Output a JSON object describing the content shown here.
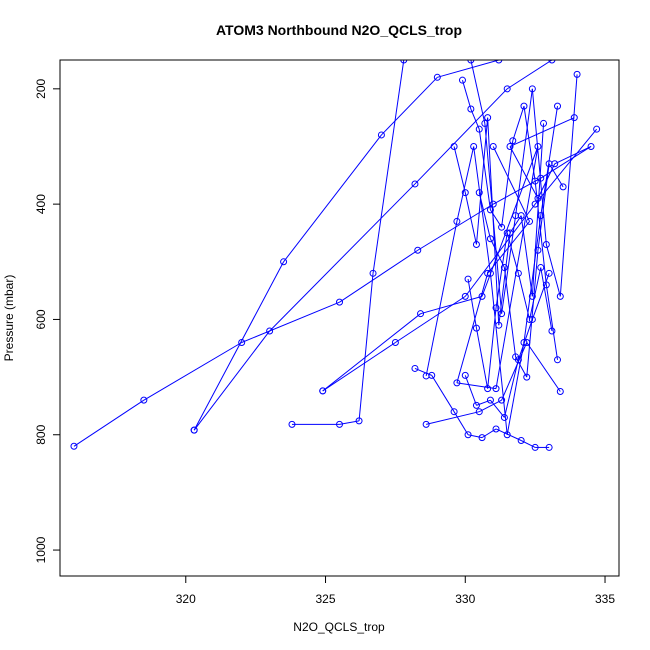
{
  "chart_data": {
    "type": "line",
    "title": "ATOM3 Northbound N2O_QCLS_trop",
    "xlabel": "N2O_QCLS_trop",
    "ylabel": "Pressure (mbar)",
    "xlim": [
      315.5,
      335.5
    ],
    "ylim": [
      1045,
      150
    ],
    "y_reversed": true,
    "x_ticks": [
      320,
      325,
      330,
      335
    ],
    "y_ticks": [
      200,
      400,
      600,
      800,
      1000
    ],
    "grid": false,
    "legend": "none",
    "colors": {
      "series": "#0000ff",
      "axis": "#000000"
    },
    "series": [
      {
        "x": [
          316.0,
          318.5,
          322.0,
          325.5,
          328.3,
          331.0,
          332.7,
          334.5,
          333.2,
          332.6,
          331.6,
          333.9
        ],
        "y": [
          820,
          740,
          640,
          570,
          480,
          400,
          355,
          300,
          330,
          390,
          300,
          250
        ]
      },
      {
        "x": [
          320.3,
          323.0,
          328.2,
          331.5,
          333.1
        ],
        "y": [
          792,
          620,
          365,
          200,
          150
        ]
      },
      {
        "x": [
          320.3,
          323.5,
          327.0,
          329.0,
          331.2
        ],
        "y": [
          792,
          500,
          280,
          180,
          150
        ]
      },
      {
        "x": [
          323.8,
          325.5,
          326.2,
          326.7,
          327.8
        ],
        "y": [
          782,
          782,
          776,
          520,
          150
        ]
      },
      {
        "x": [
          324.9,
          327.5,
          330.0,
          332.5,
          334.7
        ],
        "y": [
          724,
          640,
          560,
          400,
          270
        ]
      },
      {
        "x": [
          324.9,
          328.4,
          330.6,
          332.6,
          331.1,
          329.7,
          330.8,
          332.3,
          331.0
        ],
        "y": [
          724,
          590,
          560,
          300,
          720,
          710,
          520,
          430,
          300
        ]
      },
      {
        "x": [
          328.2,
          328.8,
          329.6,
          330.1,
          330.6,
          331.1,
          332.0,
          332.5,
          333.0
        ],
        "y": [
          685,
          697,
          760,
          800,
          805,
          790,
          810,
          822,
          822
        ]
      },
      {
        "x": [
          328.6,
          330.5,
          331.3,
          332.2,
          333.4
        ],
        "y": [
          782,
          760,
          740,
          640,
          725
        ]
      },
      {
        "x": [
          330.0,
          330.4,
          330.9,
          331.4,
          331.9,
          332.4,
          333.0
        ],
        "y": [
          697,
          749,
          740,
          770,
          670,
          600,
          520
        ]
      },
      {
        "x": [
          328.6,
          329.7,
          330.3,
          330.9,
          331.5,
          332.1,
          332.7,
          333.3
        ],
        "y": [
          698,
          430,
          300,
          520,
          800,
          640,
          420,
          230
        ]
      },
      {
        "x": [
          330.2,
          330.7,
          331.3,
          331.8,
          332.4,
          332.9,
          333.4,
          334.0
        ],
        "y": [
          150,
          260,
          590,
          420,
          200,
          470,
          560,
          175
        ]
      },
      {
        "x": [
          329.6,
          330.0,
          330.4,
          330.8,
          331.2,
          331.6,
          332.0,
          332.4,
          332.8
        ],
        "y": [
          300,
          380,
          470,
          250,
          610,
          450,
          420,
          560,
          260
        ]
      },
      {
        "x": [
          329.9,
          330.2,
          330.5,
          330.9,
          331.3,
          331.7,
          332.1,
          332.5,
          332.9,
          333.3
        ],
        "y": [
          185,
          235,
          270,
          410,
          440,
          290,
          230,
          360,
          540,
          670
        ]
      },
      {
        "x": [
          330.1,
          330.4,
          330.8,
          331.1,
          331.5,
          331.9,
          332.3,
          332.7,
          333.1
        ],
        "y": [
          530,
          615,
          720,
          580,
          450,
          520,
          600,
          510,
          620
        ]
      },
      {
        "x": [
          330.5,
          330.9,
          331.4,
          331.8,
          332.2,
          332.6,
          333.0,
          333.5
        ],
        "y": [
          380,
          460,
          510,
          665,
          700,
          480,
          330,
          370
        ]
      }
    ]
  }
}
